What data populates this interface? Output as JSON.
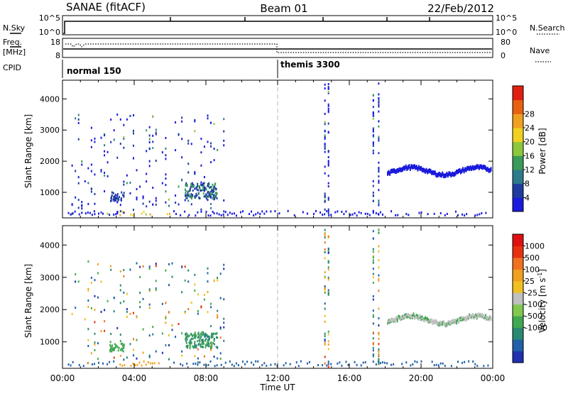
{
  "header": {
    "title": "SANAE (fitACF)",
    "beam": "Beam 01",
    "date": "22/Feb/2012"
  },
  "top_panels": {
    "nsky_label": "N.Sky",
    "nsky_ticks": [
      "10^5",
      "10^0"
    ],
    "nsearch_label": "N.Search",
    "nsearch_ticks": [
      "10^5",
      "10^0"
    ],
    "freq_label": "Freq.",
    "freq_unit": "[MHz]",
    "freq_ticks": [
      "18",
      "8"
    ],
    "nave_label": "Nave",
    "nave_ticks": [
      "80",
      "0"
    ],
    "cpid_label": "CPID",
    "cpid_modes": [
      {
        "label": "normal 150",
        "start": "00:00"
      },
      {
        "label": "themis 3300",
        "start": "12:00"
      }
    ]
  },
  "chart_data": [
    {
      "type": "heatmap",
      "panel": "power",
      "xlabel": "",
      "ylabel": "Slant Range [km]",
      "xlim": [
        0,
        24
      ],
      "ylim": [
        180,
        4600
      ],
      "x_tick_labels": [
        "00:00",
        "04:00",
        "08:00",
        "12:00",
        "16:00",
        "20:00",
        "00:00"
      ],
      "y_ticks": [
        1000,
        2000,
        3000,
        4000
      ],
      "colorbar": {
        "label": "Power [dB]",
        "ticks": [
          "4",
          "8",
          "12",
          "16",
          "20",
          "24",
          "28"
        ],
        "colors": [
          "#1a1adc",
          "#1e3ca0",
          "#2d7a8c",
          "#3a9a5a",
          "#8cc83c",
          "#f0d020",
          "#f0a020",
          "#e86010",
          "#e02010"
        ]
      },
      "marker_time": "12:00"
    },
    {
      "type": "heatmap",
      "panel": "velocity",
      "xlabel": "Time UT",
      "ylabel": "Slant Range [km]",
      "xlim": [
        0,
        24
      ],
      "ylim": [
        180,
        4600
      ],
      "x_tick_labels": [
        "00:00",
        "04:00",
        "08:00",
        "12:00",
        "16:00",
        "20:00",
        "00:00"
      ],
      "y_ticks": [
        1000,
        2000,
        3000,
        4000
      ],
      "colorbar": {
        "label": "Velocity [m s^-1]",
        "ticks": [
          "1000",
          "500",
          "100",
          "25",
          "-25",
          "-100",
          "-500",
          "-1000"
        ],
        "colors": [
          "#2030b0",
          "#2060a8",
          "#2a8870",
          "#40a850",
          "#80c850",
          "#c0c0c0",
          "#f0c020",
          "#f0a020",
          "#f07020",
          "#e83010",
          "#e01010"
        ]
      },
      "marker_time": "12:00"
    }
  ]
}
